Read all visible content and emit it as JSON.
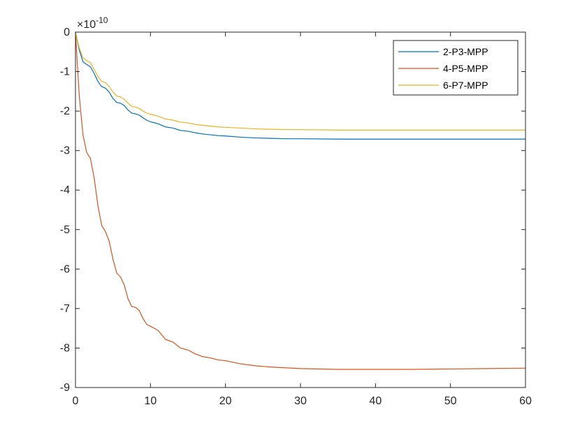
{
  "chart_data": {
    "type": "line",
    "title": "",
    "xlabel": "",
    "ylabel": "",
    "xlim": [
      0,
      60
    ],
    "ylim": [
      -9,
      0
    ],
    "y_exponent_label": "×10^-10",
    "x_ticks": [
      0,
      10,
      20,
      30,
      40,
      50,
      60
    ],
    "y_ticks": [
      0,
      -1,
      -2,
      -3,
      -4,
      -5,
      -6,
      -7,
      -8,
      -9
    ],
    "grid": false,
    "legend_position": "top-right",
    "series": [
      {
        "name": "2-P3-MPP",
        "color": "#0072BD",
        "x": [
          0,
          0.5,
          1,
          1.5,
          2,
          2.5,
          3,
          3.5,
          4,
          4.5,
          5,
          5.5,
          6,
          6.5,
          7,
          7.5,
          8,
          8.5,
          9,
          9.5,
          10,
          11,
          12,
          13,
          14,
          15,
          16,
          17,
          18,
          19,
          20,
          22,
          24,
          26,
          28,
          30,
          35,
          40,
          45,
          50,
          55,
          60
        ],
        "y": [
          0,
          -0.45,
          -0.75,
          -0.82,
          -0.88,
          -1.05,
          -1.25,
          -1.38,
          -1.42,
          -1.52,
          -1.68,
          -1.78,
          -1.8,
          -1.86,
          -1.97,
          -2.05,
          -2.07,
          -2.1,
          -2.17,
          -2.23,
          -2.27,
          -2.32,
          -2.4,
          -2.43,
          -2.49,
          -2.51,
          -2.55,
          -2.58,
          -2.6,
          -2.62,
          -2.63,
          -2.66,
          -2.68,
          -2.69,
          -2.7,
          -2.7,
          -2.71,
          -2.71,
          -2.71,
          -2.71,
          -2.71,
          -2.71
        ]
      },
      {
        "name": "4-P5-MPP",
        "color": "#D95319",
        "x": [
          0,
          0.5,
          1,
          1.5,
          2,
          2.5,
          3,
          3.5,
          4,
          4.5,
          5,
          5.5,
          6,
          6.5,
          7,
          7.5,
          8,
          8.5,
          9,
          9.5,
          10,
          11,
          12,
          13,
          14,
          15,
          16,
          17,
          18,
          19,
          20,
          22,
          24,
          26,
          28,
          30,
          35,
          40,
          45,
          50,
          55,
          60
        ],
        "y": [
          0,
          -1.6,
          -2.6,
          -3.05,
          -3.2,
          -3.7,
          -4.4,
          -4.9,
          -5.05,
          -5.3,
          -5.75,
          -6.1,
          -6.2,
          -6.4,
          -6.75,
          -6.95,
          -6.97,
          -7.05,
          -7.25,
          -7.4,
          -7.45,
          -7.55,
          -7.78,
          -7.85,
          -8.0,
          -8.05,
          -8.15,
          -8.22,
          -8.25,
          -8.3,
          -8.32,
          -8.4,
          -8.45,
          -8.48,
          -8.5,
          -8.52,
          -8.54,
          -8.54,
          -8.54,
          -8.53,
          -8.52,
          -8.51
        ]
      },
      {
        "name": "6-P7-MPP",
        "color": "#EDB120",
        "x": [
          0,
          0.5,
          1,
          1.5,
          2,
          2.5,
          3,
          3.5,
          4,
          4.5,
          5,
          5.5,
          6,
          6.5,
          7,
          7.5,
          8,
          8.5,
          9,
          9.5,
          10,
          11,
          12,
          13,
          14,
          15,
          16,
          17,
          18,
          19,
          20,
          22,
          24,
          26,
          28,
          30,
          35,
          40,
          45,
          50,
          55,
          60
        ],
        "y": [
          0,
          -0.4,
          -0.65,
          -0.72,
          -0.77,
          -0.95,
          -1.12,
          -1.25,
          -1.28,
          -1.38,
          -1.52,
          -1.62,
          -1.64,
          -1.7,
          -1.8,
          -1.88,
          -1.9,
          -1.93,
          -2.0,
          -2.05,
          -2.08,
          -2.13,
          -2.2,
          -2.23,
          -2.28,
          -2.3,
          -2.34,
          -2.36,
          -2.38,
          -2.4,
          -2.41,
          -2.43,
          -2.45,
          -2.46,
          -2.47,
          -2.47,
          -2.48,
          -2.48,
          -2.48,
          -2.48,
          -2.48,
          -2.48
        ]
      }
    ]
  }
}
